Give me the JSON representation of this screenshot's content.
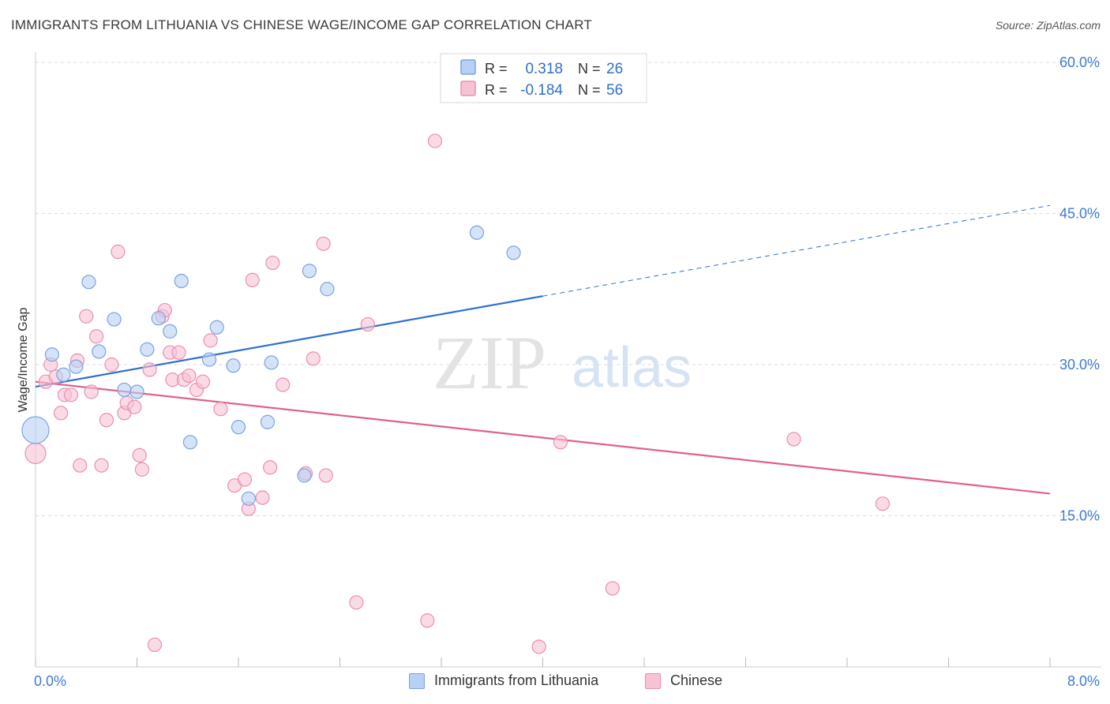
{
  "title": "IMMIGRANTS FROM LITHUANIA VS CHINESE WAGE/INCOME GAP CORRELATION CHART",
  "source": "Source: ZipAtlas.com",
  "watermark": {
    "zip": "ZIP",
    "atlas": "atlas"
  },
  "colors": {
    "blue": "#2f6fd0",
    "blue_fill": "#b8d0f2",
    "blue_stroke": "#7ba3df",
    "pink": "#e0608f",
    "pink_fill": "#f7c3d4",
    "pink_stroke": "#ea8fb0",
    "axis_label": "#3d7bd6",
    "grid": "#dddddd"
  },
  "legend_top": {
    "rows": [
      {
        "r_label": "R =",
        "r_value": "0.318",
        "n_label": "N =",
        "n_value": "26",
        "series": "blue"
      },
      {
        "r_label": "R =",
        "r_value": "-0.184",
        "n_label": "N =",
        "n_value": "56",
        "series": "pink"
      }
    ]
  },
  "legend_bottom": [
    {
      "label": "Immigrants from Lithuania",
      "series": "blue"
    },
    {
      "label": "Chinese",
      "series": "pink"
    }
  ],
  "chart_data": {
    "type": "scatter",
    "title": "IMMIGRANTS FROM LITHUANIA VS CHINESE WAGE/INCOME GAP CORRELATION CHART",
    "xlabel": "",
    "ylabel": "Wage/Income Gap",
    "xlim": [
      0,
      8
    ],
    "ylim": [
      0,
      60
    ],
    "x_tick_labels": [
      "0.0%",
      "8.0%"
    ],
    "y_tick_labels": [
      "15.0%",
      "30.0%",
      "45.0%",
      "60.0%"
    ],
    "y_ticks": [
      15,
      30,
      45,
      60
    ],
    "grid": true,
    "legend_placement": "top-center",
    "series": [
      {
        "name": "Immigrants from Lithuania",
        "color": "blue",
        "points": [
          [
            0.0,
            23.5,
            3
          ],
          [
            0.13,
            31.0,
            1
          ],
          [
            0.22,
            29.0,
            1
          ],
          [
            0.32,
            29.8,
            1
          ],
          [
            0.42,
            38.2,
            1
          ],
          [
            0.5,
            31.3,
            1
          ],
          [
            0.62,
            34.5,
            1
          ],
          [
            0.7,
            27.5,
            1
          ],
          [
            0.8,
            27.3,
            1
          ],
          [
            0.88,
            31.5,
            1
          ],
          [
            0.97,
            34.6,
            1
          ],
          [
            1.06,
            33.3,
            1
          ],
          [
            1.15,
            38.3,
            1
          ],
          [
            1.22,
            22.3,
            1
          ],
          [
            1.37,
            30.5,
            1
          ],
          [
            1.43,
            33.7,
            1
          ],
          [
            1.56,
            29.9,
            1
          ],
          [
            1.6,
            23.8,
            1
          ],
          [
            1.68,
            16.7,
            1
          ],
          [
            1.83,
            24.3,
            1
          ],
          [
            1.86,
            30.2,
            1
          ],
          [
            2.12,
            19.0,
            1
          ],
          [
            2.16,
            39.3,
            1
          ],
          [
            2.3,
            37.5,
            1
          ],
          [
            3.48,
            43.1,
            1
          ],
          [
            3.77,
            41.1,
            1
          ]
        ],
        "trend": {
          "x": [
            0,
            4.0
          ],
          "y": [
            27.8,
            36.8
          ],
          "dashed_extension": {
            "x": [
              4.0,
              8.0
            ],
            "y": [
              36.8,
              45.8
            ]
          }
        }
      },
      {
        "name": "Chinese",
        "color": "pink",
        "points": [
          [
            0.0,
            21.2,
            2
          ],
          [
            0.08,
            28.3,
            1
          ],
          [
            0.12,
            30.0,
            1
          ],
          [
            0.16,
            28.8,
            1
          ],
          [
            0.2,
            25.2,
            1
          ],
          [
            0.23,
            27.0,
            1
          ],
          [
            0.28,
            27.0,
            1
          ],
          [
            0.33,
            30.4,
            1
          ],
          [
            0.35,
            20.0,
            1
          ],
          [
            0.4,
            34.8,
            1
          ],
          [
            0.44,
            27.3,
            1
          ],
          [
            0.48,
            32.8,
            1
          ],
          [
            0.52,
            20.0,
            1
          ],
          [
            0.56,
            24.5,
            1
          ],
          [
            0.6,
            30.0,
            1
          ],
          [
            0.65,
            41.2,
            1
          ],
          [
            0.7,
            25.2,
            1
          ],
          [
            0.72,
            26.2,
            1
          ],
          [
            0.78,
            25.8,
            1
          ],
          [
            0.82,
            21.0,
            1
          ],
          [
            0.84,
            19.6,
            1
          ],
          [
            0.9,
            29.5,
            1
          ],
          [
            0.94,
            2.2,
            1
          ],
          [
            1.0,
            34.8,
            1
          ],
          [
            1.02,
            35.4,
            1
          ],
          [
            1.06,
            31.2,
            1
          ],
          [
            1.08,
            28.5,
            1
          ],
          [
            1.13,
            31.2,
            1
          ],
          [
            1.17,
            28.5,
            1
          ],
          [
            1.21,
            28.9,
            1
          ],
          [
            1.27,
            27.5,
            1
          ],
          [
            1.32,
            28.3,
            1
          ],
          [
            1.38,
            32.4,
            1
          ],
          [
            1.46,
            25.6,
            1
          ],
          [
            1.57,
            18.0,
            1
          ],
          [
            1.65,
            18.6,
            1
          ],
          [
            1.68,
            15.7,
            1
          ],
          [
            1.71,
            38.4,
            1
          ],
          [
            1.79,
            16.8,
            1
          ],
          [
            1.85,
            19.8,
            1
          ],
          [
            1.87,
            40.1,
            1
          ],
          [
            1.95,
            28.0,
            1
          ],
          [
            2.13,
            19.2,
            1
          ],
          [
            2.19,
            30.6,
            1
          ],
          [
            2.27,
            42.0,
            1
          ],
          [
            2.29,
            19.0,
            1
          ],
          [
            2.53,
            6.4,
            1
          ],
          [
            2.62,
            34.0,
            1
          ],
          [
            3.09,
            4.6,
            1
          ],
          [
            3.15,
            52.2,
            1
          ],
          [
            3.97,
            2.0,
            1
          ],
          [
            4.14,
            22.3,
            1
          ],
          [
            4.55,
            7.8,
            1
          ],
          [
            5.98,
            22.6,
            1
          ],
          [
            6.68,
            16.2,
            1
          ]
        ],
        "trend": {
          "x": [
            0,
            8.0
          ],
          "y": [
            28.3,
            17.2
          ]
        }
      }
    ]
  }
}
